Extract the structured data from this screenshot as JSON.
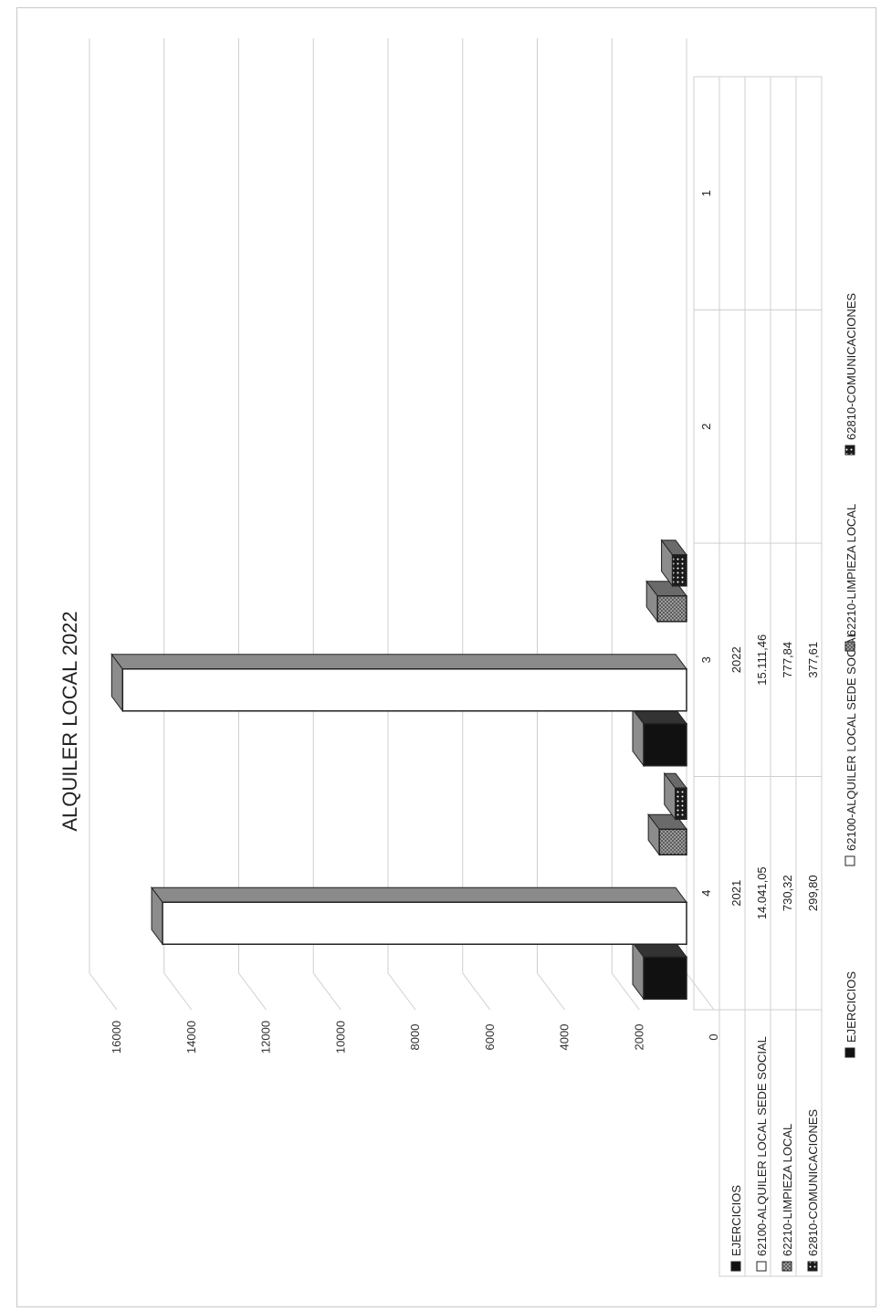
{
  "chart_data": {
    "type": "bar",
    "title": "ALQUILER LOCAL  2022",
    "orientation": "rotated 90° counter-clockwise (3D column chart with data table)",
    "categories": [
      "1",
      "2",
      "3",
      "4"
    ],
    "ylim": [
      0,
      16000
    ],
    "yticks": [
      "0",
      "2000",
      "4000",
      "6000",
      "8000",
      "10000",
      "12000",
      "14000",
      "16000"
    ],
    "grid": true,
    "legend_position": "bottom",
    "series": [
      {
        "name": "EJERCICIOS",
        "values": [
          null,
          null,
          2022,
          2021
        ],
        "labels": [
          "",
          "",
          "2022",
          "2021"
        ],
        "fill": "#111111"
      },
      {
        "name": "62100-ALQUILER LOCAL SEDE SOCIAL",
        "values": [
          null,
          null,
          15111.46,
          14041.05
        ],
        "labels": [
          "",
          "",
          "15.111,46",
          "14.041,05"
        ],
        "fill": "#ffffff"
      },
      {
        "name": "62210-LIMPIEZA LOCAL",
        "values": [
          null,
          null,
          777.84,
          730.32
        ],
        "labels": [
          "",
          "",
          "777,84",
          "730,32"
        ],
        "fill": "#8a8a8a"
      },
      {
        "name": "62810-COMUNICACIONES",
        "values": [
          null,
          null,
          377.61,
          299.8
        ],
        "labels": [
          "",
          "",
          "377,61",
          "299,80"
        ],
        "fill": "#3a3a3a"
      }
    ]
  },
  "colors": {
    "grid": "#cfcfcf",
    "bar_side": "#8c8c8c",
    "bar_edge": "#222222"
  }
}
